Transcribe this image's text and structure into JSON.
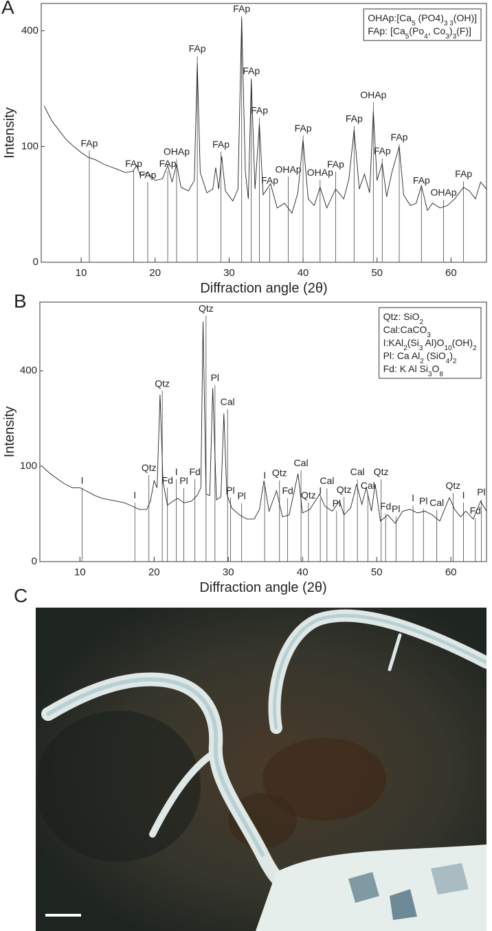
{
  "chart_data": [
    {
      "type": "line",
      "panel": "A",
      "yscale": "sqrt",
      "color": "#222222",
      "legend": "upper right",
      "xlabel": "Diffraction angle (2θ)",
      "ylabel": "Intensity",
      "xlim": [
        4.6,
        64.8
      ],
      "xticks": [
        10,
        20,
        30,
        40,
        50,
        60
      ],
      "ylim": [
        0,
        500
      ],
      "yticks": [
        0,
        100,
        400
      ],
      "x": [
        5,
        6,
        7,
        8,
        9,
        10,
        11,
        12,
        13,
        14,
        15,
        16,
        17,
        17.5,
        18,
        19,
        20,
        21,
        21.7,
        22.3,
        22.9,
        23.5,
        24.5,
        25.3,
        25.7,
        26.1,
        27,
        27.8,
        28.2,
        28.6,
        29.0,
        29.5,
        30.5,
        31.2,
        31.7,
        32.2,
        32.6,
        33.0,
        33.5,
        34.1,
        34.6,
        35.6,
        36.5,
        37.5,
        38.5,
        39.3,
        40.0,
        40.7,
        41.5,
        42.3,
        43.2,
        44.4,
        45.5,
        46.2,
        46.9,
        47.6,
        48.3,
        49.0,
        49.5,
        50.0,
        50.7,
        51.3,
        52.0,
        53.0,
        53.6,
        54.5,
        55.3,
        56.0,
        56.8,
        57.5,
        58.5,
        59.5,
        60.5,
        61.7,
        62.5,
        63.3,
        64.0,
        64.8
      ],
      "values": [
        182,
        150,
        130,
        112,
        100,
        90,
        82,
        78,
        72,
        68,
        64,
        60,
        62,
        70,
        56,
        60,
        50,
        52,
        70,
        48,
        72,
        42,
        38,
        50,
        296,
        60,
        36,
        40,
        67,
        40,
        84,
        38,
        28,
        40,
        444,
        60,
        30,
        249,
        40,
        143,
        34,
        46,
        22,
        26,
        18,
        36,
        112,
        30,
        24,
        42,
        22,
        40,
        30,
        52,
        131,
        40,
        58,
        36,
        170,
        50,
        73,
        32,
        60,
        100,
        34,
        24,
        26,
        44,
        20,
        26,
        22,
        24,
        30,
        42,
        38,
        30,
        48,
        40
      ],
      "annotations": [
        {
          "text": "FAp",
          "x": 11.1,
          "y": 100
        },
        {
          "text": "FAp",
          "x": 17.1,
          "y": 68
        },
        {
          "text": "FAp",
          "x": 19.0,
          "y": 53
        },
        {
          "text": "FAp",
          "x": 21.7,
          "y": 68
        },
        {
          "text": "OHAp",
          "x": 22.9,
          "y": 86
        },
        {
          "text": "FAp",
          "x": 25.7,
          "y": 330
        },
        {
          "text": "FAp",
          "x": 28.9,
          "y": 98
        },
        {
          "text": "FAp",
          "x": 31.7,
          "y": 467
        },
        {
          "text": "FAp",
          "x": 33.0,
          "y": 264
        },
        {
          "text": "FAp",
          "x": 34.1,
          "y": 165
        },
        {
          "text": "FAp",
          "x": 35.5,
          "y": 46
        },
        {
          "text": "OHAp",
          "x": 38.0,
          "y": 60
        },
        {
          "text": "FAp",
          "x": 40.0,
          "y": 128
        },
        {
          "text": "OHAp",
          "x": 42.3,
          "y": 56
        },
        {
          "text": "FAp",
          "x": 44.4,
          "y": 67
        },
        {
          "text": "FAp",
          "x": 46.9,
          "y": 147
        },
        {
          "text": "OHAp",
          "x": 49.5,
          "y": 201
        },
        {
          "text": "FAp",
          "x": 50.7,
          "y": 87
        },
        {
          "text": "FAp",
          "x": 53.0,
          "y": 111
        },
        {
          "text": "FAp",
          "x": 56.0,
          "y": 46
        },
        {
          "text": "OHAp",
          "x": 59.0,
          "y": 33
        },
        {
          "text": "FAp",
          "x": 61.7,
          "y": 54
        }
      ],
      "legend_lines": [
        [
          "OHAp:[Ca",
          "5",
          " (PO4)",
          "3 3",
          "(OH)]"
        ],
        [
          "FAp: [Ca",
          "5",
          "(Po",
          "4",
          ", Co",
          "3",
          ")",
          "3",
          "(F)]"
        ]
      ]
    },
    {
      "type": "line",
      "panel": "B",
      "yscale": "sqrt",
      "color": "#222222",
      "legend": "upper right",
      "xlabel": "Diffraction angle (2θ)",
      "ylabel": "Intensity",
      "xlim": [
        4.6,
        64.8
      ],
      "xticks": [
        10,
        20,
        30,
        40,
        50,
        60
      ],
      "ylim": [
        0,
        740
      ],
      "yticks": [
        0,
        100,
        400
      ],
      "x": [
        5,
        6,
        7,
        8,
        9,
        10,
        11,
        12,
        13,
        14,
        15,
        16,
        17,
        18,
        19,
        19.5,
        20,
        20.4,
        20.8,
        21.2,
        21.8,
        22.5,
        23.2,
        24,
        25,
        25.8,
        26.3,
        26.6,
        27,
        27.5,
        27.9,
        28.4,
        29,
        29.4,
        29.8,
        30.5,
        31.5,
        32.5,
        33.5,
        34.2,
        34.8,
        35.5,
        36.5,
        37.3,
        38.2,
        39.4,
        40,
        41,
        42.3,
        43,
        44,
        45,
        45.6,
        46.5,
        47.3,
        48,
        48.6,
        49.3,
        49.8,
        50.5,
        51.5,
        52.5,
        53.5,
        54.5,
        55.5,
        56.5,
        57.5,
        58.5,
        59.8,
        60.5,
        61.3,
        62,
        63,
        64,
        64.8
      ],
      "values": [
        98,
        85,
        75,
        66,
        60,
        60,
        54,
        48,
        44,
        42,
        40,
        38,
        34,
        30,
        30,
        40,
        72,
        60,
        306,
        70,
        35,
        40,
        44,
        38,
        40,
        48,
        60,
        634,
        50,
        48,
        331,
        42,
        46,
        241,
        50,
        31,
        24,
        20,
        20,
        30,
        72,
        28,
        55,
        22,
        24,
        85,
        26,
        30,
        50,
        34,
        28,
        40,
        24,
        32,
        66,
        36,
        60,
        28,
        66,
        18,
        24,
        16,
        28,
        30,
        26,
        28,
        24,
        18,
        45,
        30,
        22,
        28,
        20,
        40,
        28
      ],
      "annotations": [
        {
          "text": "I",
          "x": 10.3,
          "y": 67
        },
        {
          "text": "I",
          "x": 17.4,
          "y": 44
        },
        {
          "text": "Qtz",
          "x": 19.3,
          "y": 90
        },
        {
          "text": "Qtz",
          "x": 21.1,
          "y": 336
        },
        {
          "text": "Fd",
          "x": 21.8,
          "y": 67
        },
        {
          "text": "I",
          "x": 23.0,
          "y": 82
        },
        {
          "text": "Pl",
          "x": 24.0,
          "y": 66
        },
        {
          "text": "Fd",
          "x": 25.5,
          "y": 82
        },
        {
          "text": "Qtz",
          "x": 27.0,
          "y": 686
        },
        {
          "text": "Pl",
          "x": 28.2,
          "y": 358
        },
        {
          "text": "Cal",
          "x": 29.9,
          "y": 269
        },
        {
          "text": "Pl",
          "x": 30.3,
          "y": 51
        },
        {
          "text": "Pl",
          "x": 31.8,
          "y": 43
        },
        {
          "text": "I",
          "x": 34.9,
          "y": 76
        },
        {
          "text": "Qtz",
          "x": 36.9,
          "y": 80
        },
        {
          "text": "Fd",
          "x": 38.0,
          "y": 50
        },
        {
          "text": "Cal",
          "x": 39.8,
          "y": 100
        },
        {
          "text": "Qtz",
          "x": 40.8,
          "y": 44
        },
        {
          "text": "I",
          "x": 42.4,
          "y": 50
        },
        {
          "text": "Cal",
          "x": 43.3,
          "y": 66
        },
        {
          "text": "Pl",
          "x": 44.6,
          "y": 33
        },
        {
          "text": "Qtz",
          "x": 45.6,
          "y": 52
        },
        {
          "text": "Cal",
          "x": 47.4,
          "y": 82
        },
        {
          "text": "Cal",
          "x": 48.8,
          "y": 58
        },
        {
          "text": "Qtz",
          "x": 50.6,
          "y": 82
        },
        {
          "text": "Fd",
          "x": 51.2,
          "y": 30
        },
        {
          "text": "Pl",
          "x": 52.6,
          "y": 27
        },
        {
          "text": "I",
          "x": 54.9,
          "y": 40
        },
        {
          "text": "Pl",
          "x": 56.3,
          "y": 36
        },
        {
          "text": "Cal",
          "x": 58.1,
          "y": 34
        },
        {
          "text": "Qtz",
          "x": 60.3,
          "y": 58
        },
        {
          "text": "I",
          "x": 61.7,
          "y": 44
        },
        {
          "text": "Fd",
          "x": 63.3,
          "y": 25
        },
        {
          "text": "Pl",
          "x": 64.1,
          "y": 48
        }
      ],
      "legend_lines": [
        [
          "Qtz: SiO",
          "2"
        ],
        [
          "Cal:CaCO",
          "3"
        ],
        [
          "I:KAl",
          "2",
          "(Si",
          "3",
          " Al)O",
          "10",
          "(OH)",
          "2"
        ],
        [
          "Pl: Ca Al",
          "2",
          " (SiO",
          "4",
          ")",
          "2"
        ],
        [
          "Fd: K Al Si",
          "3",
          "O",
          "8"
        ]
      ]
    }
  ],
  "image_panel": {
    "label": "C"
  }
}
